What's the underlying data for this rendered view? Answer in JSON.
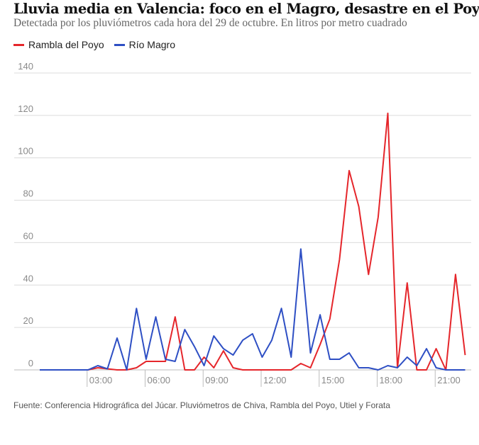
{
  "title": "Lluvia media en Valencia: foco en el Magro, desastre en el Poyo",
  "subtitle": "Detectada por los pluviómetros cada hora del 29 de octubre. En litros por metro cuadrado",
  "source": "Fuente: Conferencia Hidrográfica del Júcar. Pluviómetros de Chiva, Rambla del Poyo, Utiel y Forata",
  "chart_data": {
    "type": "line",
    "title": "Lluvia media en Valencia: foco en el Magro, desastre en el Poyo",
    "subtitle": "Detectada por los pluviómetros cada hora del 29 de octubre. En litros por metro cuadrado",
    "xlabel": "",
    "ylabel": "",
    "x": [
      "00:00",
      "01:00",
      "02:00",
      "03:00",
      "04:00",
      "05:00",
      "06:00",
      "07:00",
      "08:00",
      "09:00",
      "10:00",
      "11:00",
      "12:00",
      "13:00",
      "14:00",
      "15:00",
      "16:00",
      "17:00",
      "18:00",
      "19:00",
      "20:00",
      "21:00",
      "22:00"
    ],
    "x_ticks": [
      "03:00",
      "06:00",
      "09:00",
      "12:00",
      "15:00",
      "18:00",
      "21:00"
    ],
    "y_ticks": [
      0,
      20,
      40,
      60,
      80,
      100,
      120,
      140
    ],
    "ylim": [
      0,
      140
    ],
    "grid": true,
    "legend_position": "top-left",
    "series": [
      {
        "name": "Rambla del Poyo",
        "color": "#e5262b",
        "values": [
          0,
          0,
          0,
          1,
          0,
          1,
          4,
          25,
          0,
          1,
          1,
          0,
          0,
          0,
          1,
          24,
          94,
          45,
          121,
          41,
          0,
          0,
          7
        ],
        "values_half_hour_marks": [
          0,
          0,
          0,
          0.5,
          0,
          4,
          4,
          0,
          6,
          9,
          0,
          0,
          0,
          3,
          12,
          52,
          77,
          72,
          1,
          0,
          10,
          45,
          0
        ]
      },
      {
        "name": "Río Magro",
        "color": "#2e4fc4",
        "values": [
          0,
          0,
          0,
          2,
          15,
          29,
          25,
          4,
          11,
          16,
          7,
          17,
          14,
          6,
          8,
          5,
          8,
          1,
          2,
          6,
          10,
          0,
          0
        ],
        "values_half_hour_marks": [
          0,
          0,
          0,
          0.5,
          0,
          5,
          5,
          19,
          2,
          10,
          14,
          6,
          29,
          57,
          26,
          5,
          1,
          0,
          1,
          2,
          1,
          0,
          0
        ]
      }
    ]
  }
}
